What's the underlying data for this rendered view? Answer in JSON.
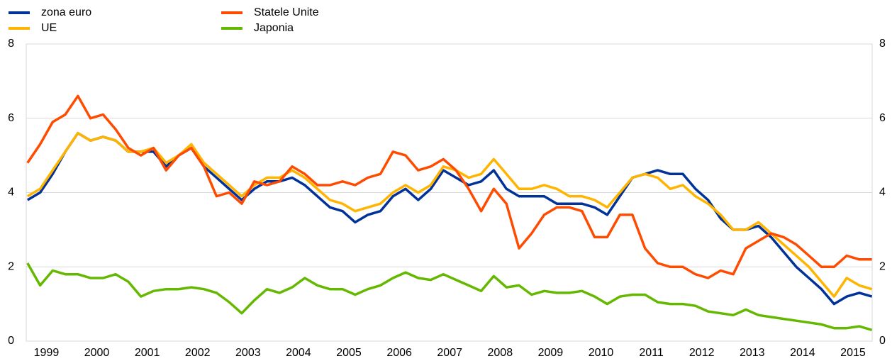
{
  "chart_data": {
    "type": "line",
    "x": [
      1999.125,
      1999.375,
      1999.625,
      1999.875,
      2000.125,
      2000.375,
      2000.625,
      2000.875,
      2001.125,
      2001.375,
      2001.625,
      2001.875,
      2002.125,
      2002.375,
      2002.625,
      2002.875,
      2003.125,
      2003.375,
      2003.625,
      2003.875,
      2004.125,
      2004.375,
      2004.625,
      2004.875,
      2005.125,
      2005.375,
      2005.625,
      2005.875,
      2006.125,
      2006.375,
      2006.625,
      2006.875,
      2007.125,
      2007.375,
      2007.625,
      2007.875,
      2008.125,
      2008.375,
      2008.625,
      2008.875,
      2009.125,
      2009.375,
      2009.625,
      2009.875,
      2010.125,
      2010.375,
      2010.625,
      2010.875,
      2011.125,
      2011.375,
      2011.625,
      2011.875,
      2012.125,
      2012.375,
      2012.625,
      2012.875,
      2013.125,
      2013.375,
      2013.625,
      2013.875,
      2014.125,
      2014.375,
      2014.625,
      2014.875,
      2015.125,
      2015.375,
      2015.625,
      2015.875
    ],
    "xlim": [
      1999.1,
      2015.88
    ],
    "xticks": [
      {
        "value": 1999.5,
        "label": "1999"
      },
      {
        "value": 2000.5,
        "label": "2000"
      },
      {
        "value": 2001.5,
        "label": "2001"
      },
      {
        "value": 2002.5,
        "label": "2002"
      },
      {
        "value": 2003.5,
        "label": "2003"
      },
      {
        "value": 2004.5,
        "label": "2004"
      },
      {
        "value": 2005.5,
        "label": "2005"
      },
      {
        "value": 2006.5,
        "label": "2006"
      },
      {
        "value": 2007.5,
        "label": "2007"
      },
      {
        "value": 2008.5,
        "label": "2008"
      },
      {
        "value": 2009.5,
        "label": "2009"
      },
      {
        "value": 2010.5,
        "label": "2010"
      },
      {
        "value": 2011.5,
        "label": "2011"
      },
      {
        "value": 2012.5,
        "label": "2012"
      },
      {
        "value": 2013.5,
        "label": "2013"
      },
      {
        "value": 2014.5,
        "label": "2014"
      },
      {
        "value": 2015.5,
        "label": "2015"
      }
    ],
    "ylim": [
      0,
      8
    ],
    "yticks": [
      0,
      2,
      4,
      6,
      8
    ],
    "grid": true,
    "legend": "top-left",
    "series": [
      {
        "name": "zona euro",
        "color": "#003299",
        "values": [
          3.8,
          4.0,
          4.5,
          5.1,
          5.6,
          5.4,
          5.5,
          5.4,
          5.1,
          5.1,
          5.1,
          4.7,
          5.0,
          5.2,
          4.7,
          4.4,
          4.1,
          3.8,
          4.1,
          4.3,
          4.3,
          4.4,
          4.2,
          3.9,
          3.6,
          3.5,
          3.2,
          3.4,
          3.5,
          3.9,
          4.1,
          3.8,
          4.1,
          4.6,
          4.4,
          4.2,
          4.3,
          4.6,
          4.1,
          3.9,
          3.9,
          3.9,
          3.7,
          3.7,
          3.7,
          3.6,
          3.4,
          3.9,
          4.4,
          4.5,
          4.6,
          4.5,
          4.5,
          4.1,
          3.8,
          3.3,
          3.0,
          3.0,
          3.1,
          2.8,
          2.4,
          2.0,
          1.7,
          1.4,
          1.0,
          1.2,
          1.3,
          1.2
        ]
      },
      {
        "name": "UE",
        "color": "#ffb400",
        "values": [
          3.9,
          4.1,
          4.6,
          5.1,
          5.6,
          5.4,
          5.5,
          5.4,
          5.1,
          5.1,
          5.2,
          4.8,
          5.0,
          5.3,
          4.8,
          4.5,
          4.2,
          3.9,
          4.2,
          4.4,
          4.4,
          4.6,
          4.4,
          4.1,
          3.8,
          3.7,
          3.5,
          3.6,
          3.7,
          4.0,
          4.2,
          4.0,
          4.2,
          4.7,
          4.6,
          4.4,
          4.5,
          4.9,
          4.5,
          4.1,
          4.1,
          4.2,
          4.1,
          3.9,
          3.9,
          3.8,
          3.6,
          4.0,
          4.4,
          4.5,
          4.4,
          4.1,
          4.2,
          3.9,
          3.7,
          3.4,
          3.0,
          3.0,
          3.2,
          2.9,
          2.6,
          2.3,
          2.0,
          1.6,
          1.2,
          1.7,
          1.5,
          1.4
        ]
      },
      {
        "name": "Statele Unite",
        "color": "#ff4b00",
        "values": [
          4.8,
          5.3,
          5.9,
          6.1,
          6.6,
          6.0,
          6.1,
          5.7,
          5.2,
          5.0,
          5.2,
          4.6,
          5.0,
          5.2,
          4.7,
          3.9,
          4.0,
          3.7,
          4.3,
          4.2,
          4.3,
          4.7,
          4.5,
          4.2,
          4.2,
          4.3,
          4.2,
          4.4,
          4.5,
          5.1,
          5.0,
          4.6,
          4.7,
          4.9,
          4.6,
          4.1,
          3.5,
          4.1,
          3.7,
          2.5,
          2.9,
          3.4,
          3.6,
          3.6,
          3.5,
          2.8,
          2.8,
          3.4,
          3.4,
          2.5,
          2.1,
          2.0,
          2.0,
          1.8,
          1.7,
          1.9,
          1.8,
          2.5,
          2.7,
          2.9,
          2.8,
          2.6,
          2.3,
          2.0,
          2.0,
          2.3,
          2.2,
          2.2
        ]
      },
      {
        "name": "Japonia",
        "color": "#65b800",
        "values": [
          2.1,
          1.5,
          1.9,
          1.8,
          1.8,
          1.7,
          1.7,
          1.8,
          1.6,
          1.2,
          1.35,
          1.4,
          1.4,
          1.45,
          1.4,
          1.3,
          1.05,
          0.75,
          1.1,
          1.4,
          1.3,
          1.45,
          1.7,
          1.5,
          1.4,
          1.4,
          1.25,
          1.4,
          1.5,
          1.7,
          1.85,
          1.7,
          1.65,
          1.8,
          1.65,
          1.5,
          1.35,
          1.75,
          1.45,
          1.5,
          1.25,
          1.35,
          1.3,
          1.3,
          1.35,
          1.2,
          1.0,
          1.2,
          1.25,
          1.25,
          1.05,
          1.0,
          1.0,
          0.95,
          0.8,
          0.75,
          0.7,
          0.85,
          0.7,
          0.65,
          0.6,
          0.55,
          0.5,
          0.45,
          0.35,
          0.35,
          0.4,
          0.3
        ]
      }
    ]
  }
}
